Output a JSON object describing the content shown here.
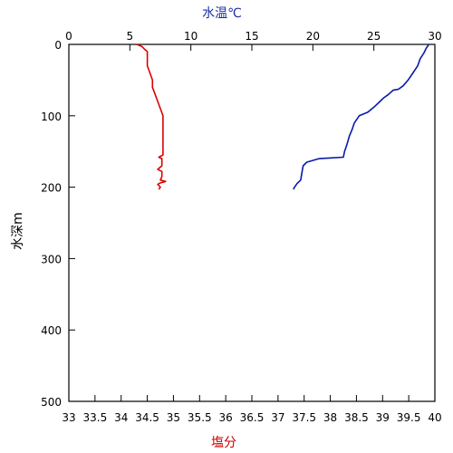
{
  "chart_data": {
    "type": "line",
    "top_axis": {
      "label": "水温℃",
      "range": [
        0,
        30
      ],
      "ticks": [
        0,
        5,
        10,
        15,
        20,
        25,
        30
      ],
      "color": "#1a2ea8"
    },
    "bottom_axis": {
      "label": "塩分",
      "range": [
        33,
        40
      ],
      "ticks": [
        33,
        33.5,
        34,
        34.5,
        35,
        35.5,
        36,
        36.5,
        37,
        37.5,
        38,
        38.5,
        39,
        39.5,
        40
      ],
      "color": "#cc0000"
    },
    "left_axis": {
      "label": "水深m",
      "range": [
        0,
        500
      ],
      "reversed": true,
      "ticks": [
        0,
        100,
        200,
        300,
        400,
        500
      ]
    },
    "grid": false,
    "series": [
      {
        "axis": "top",
        "color": "#0a1aa8",
        "points": [
          [
            29.5,
            0
          ],
          [
            29.3,
            5
          ],
          [
            29.1,
            12
          ],
          [
            28.8,
            20
          ],
          [
            28.6,
            30
          ],
          [
            28.2,
            40
          ],
          [
            27.8,
            50
          ],
          [
            27.4,
            58
          ],
          [
            27.0,
            63
          ],
          [
            26.6,
            64
          ],
          [
            26.2,
            70
          ],
          [
            25.8,
            75
          ],
          [
            25.5,
            80
          ],
          [
            25.0,
            88
          ],
          [
            24.5,
            95
          ],
          [
            23.8,
            100
          ],
          [
            23.4,
            110
          ],
          [
            23.2,
            120
          ],
          [
            23.0,
            128
          ],
          [
            22.8,
            140
          ],
          [
            22.6,
            150
          ],
          [
            22.5,
            158
          ],
          [
            21.5,
            159
          ],
          [
            20.5,
            160
          ],
          [
            19.5,
            165
          ],
          [
            19.2,
            170
          ],
          [
            19.1,
            180
          ],
          [
            19.0,
            190
          ],
          [
            18.7,
            195
          ],
          [
            18.5,
            200
          ],
          [
            18.4,
            203
          ]
        ]
      },
      {
        "axis": "bottom",
        "color": "#dd0000",
        "points": [
          [
            34.3,
            0
          ],
          [
            34.4,
            3
          ],
          [
            34.45,
            7
          ],
          [
            34.5,
            10
          ],
          [
            34.5,
            30
          ],
          [
            34.55,
            40
          ],
          [
            34.6,
            50
          ],
          [
            34.6,
            60
          ],
          [
            34.65,
            70
          ],
          [
            34.7,
            80
          ],
          [
            34.75,
            90
          ],
          [
            34.8,
            100
          ],
          [
            34.8,
            120
          ],
          [
            34.8,
            140
          ],
          [
            34.8,
            155
          ],
          [
            34.72,
            158
          ],
          [
            34.78,
            160
          ],
          [
            34.78,
            170
          ],
          [
            34.7,
            175
          ],
          [
            34.78,
            178
          ],
          [
            34.78,
            185
          ],
          [
            34.75,
            190
          ],
          [
            34.85,
            192
          ],
          [
            34.75,
            194
          ],
          [
            34.7,
            196
          ],
          [
            34.75,
            200
          ],
          [
            34.72,
            203
          ]
        ]
      }
    ]
  }
}
